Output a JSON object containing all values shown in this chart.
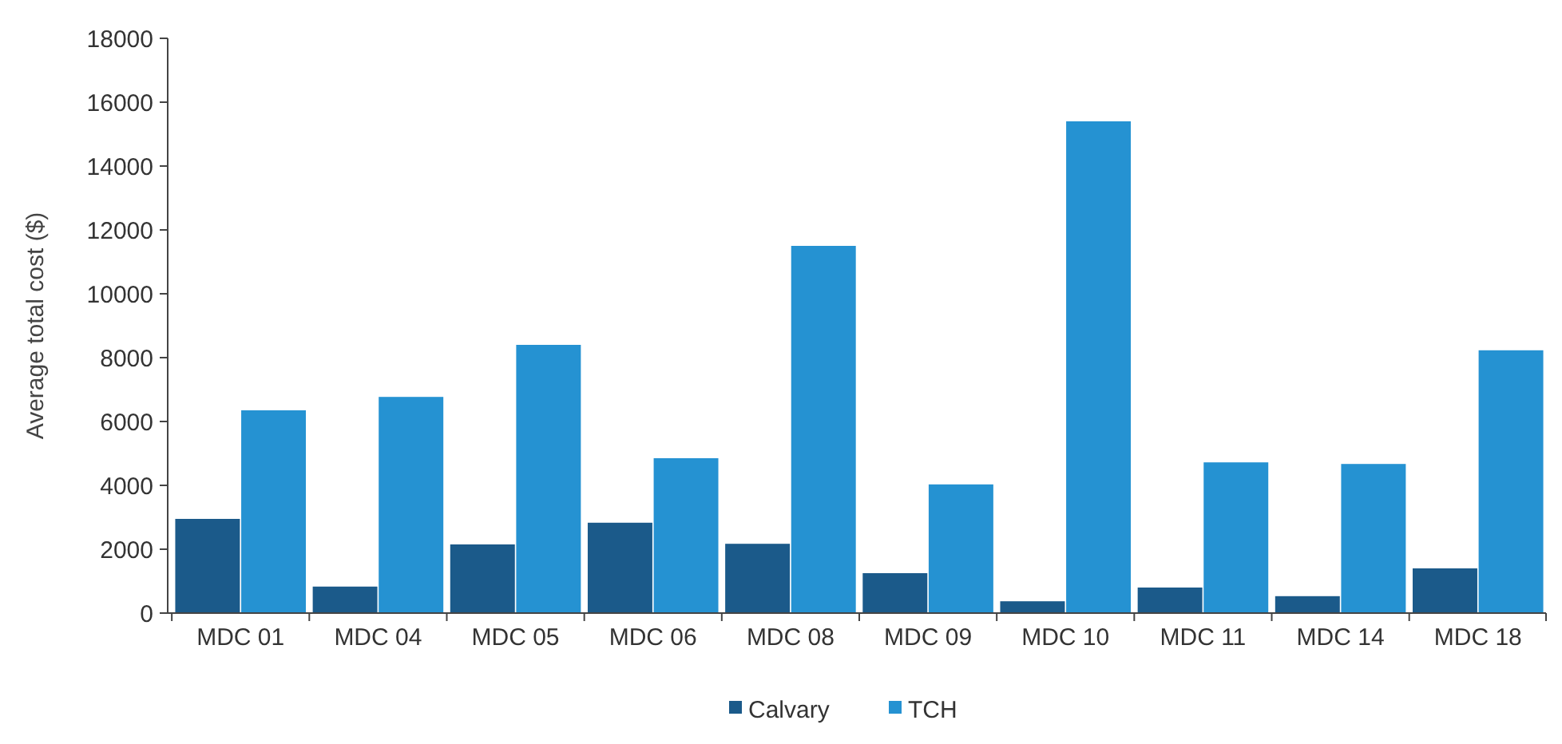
{
  "chart_data": {
    "type": "bar",
    "ylabel": "Average total cost ($)",
    "categories": [
      "MDC 01",
      "MDC 04",
      "MDC 05",
      "MDC 06",
      "MDC 08",
      "MDC 09",
      "MDC 10",
      "MDC 11",
      "MDC 14",
      "MDC 18"
    ],
    "series": [
      {
        "name": "Calvary",
        "color": "#1b5a8a",
        "values": [
          2950,
          830,
          2150,
          2830,
          2170,
          1250,
          370,
          800,
          530,
          1400
        ]
      },
      {
        "name": "TCH",
        "color": "#2592d2",
        "values": [
          6350,
          6770,
          8400,
          4850,
          11500,
          4030,
          15400,
          4720,
          4670,
          8230
        ]
      }
    ],
    "ylim": [
      0,
      18000
    ],
    "yticks": [
      0,
      2000,
      4000,
      6000,
      8000,
      10000,
      12000,
      14000,
      16000,
      18000
    ],
    "grid": false,
    "legend": "bottom"
  }
}
